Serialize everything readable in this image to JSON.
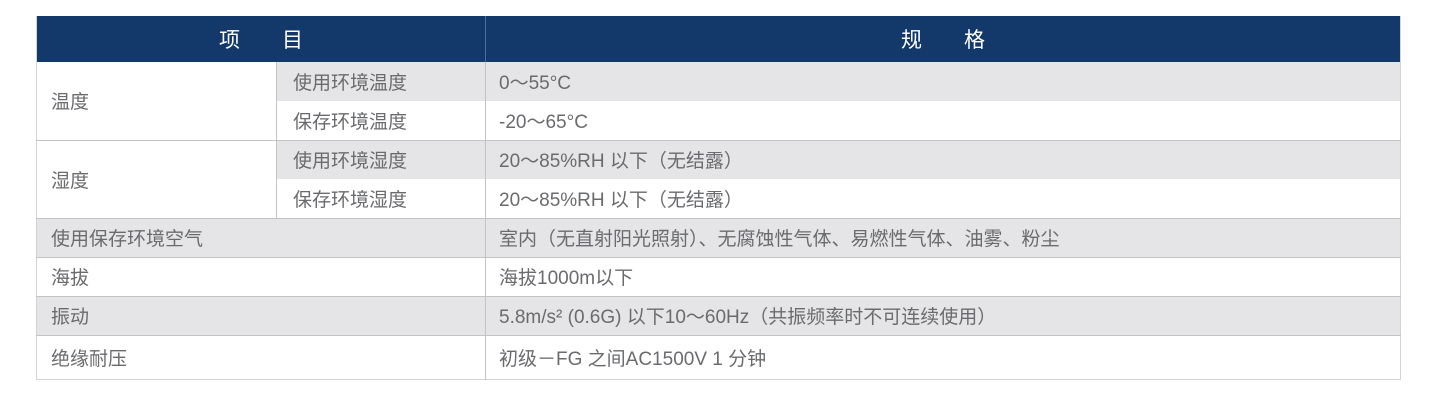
{
  "table": {
    "header": {
      "item": "项　　目",
      "spec": "规　　格"
    },
    "rows": [
      {
        "group": "温度",
        "label": "使用环境温度",
        "value": "0～55°C"
      },
      {
        "label": "保存环境温度",
        "value": "-20～65°C"
      },
      {
        "group": "湿度",
        "label": "使用环境湿度",
        "value": "20～85%RH 以下（无结露）"
      },
      {
        "label": "保存环境湿度",
        "value": "20～85%RH 以下（无结露）"
      },
      {
        "label": "使用保存环境空气",
        "value": "室内（无直射阳光照射）、无腐蚀性气体、易燃性气体、油雾、粉尘"
      },
      {
        "label": "海拔",
        "value": "海拔1000m以下"
      },
      {
        "label": "振动",
        "value": "5.8m/s² (0.6G) 以下10～60Hz（共振频率时不可连续使用）"
      },
      {
        "label": "绝缘耐压",
        "value": "初级－FG 之间AC1500V 1 分钟"
      }
    ],
    "colors": {
      "header_bg": "#13396b",
      "header_text": "#ffffff",
      "header_divider": "#4e6e96",
      "row_shade": "#e5e5e7",
      "grid_border": "#c2c3c5",
      "outer_border": "#d2d3d5",
      "body_text": "#6a6b6e"
    }
  }
}
